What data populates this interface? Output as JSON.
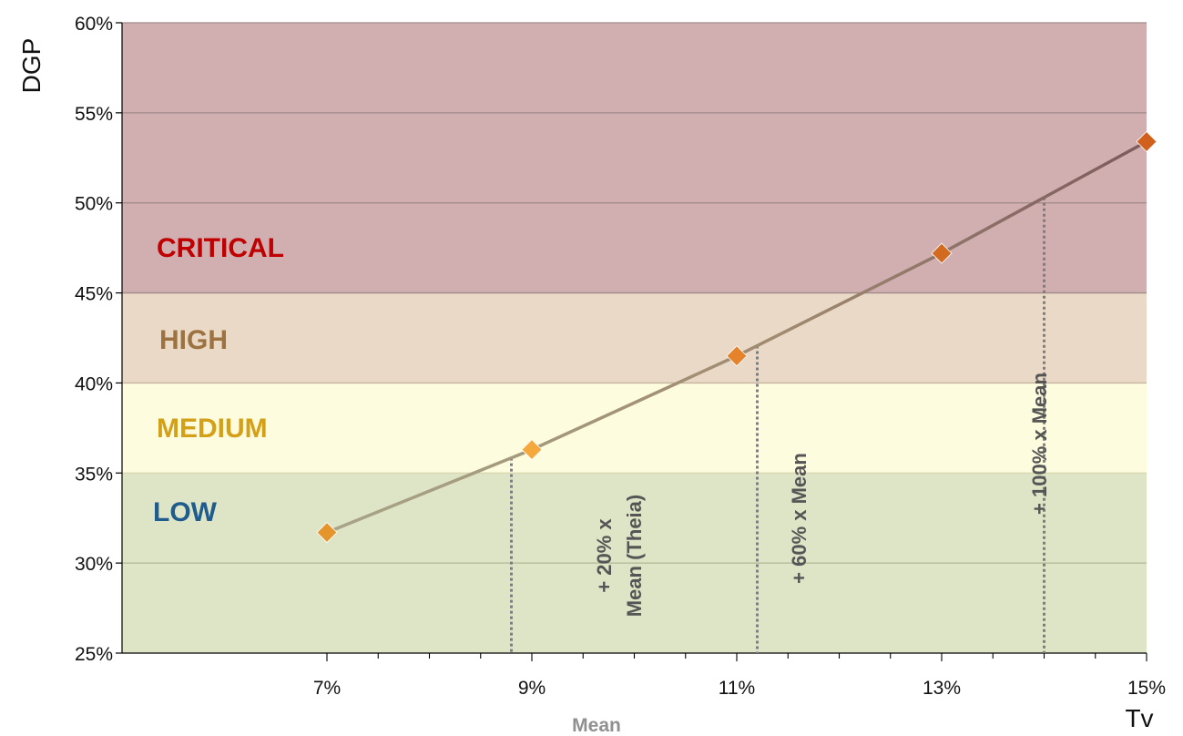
{
  "chart_data": {
    "type": "line",
    "xlabel": "Tv",
    "ylabel": "DGP",
    "xlim": [
      5,
      15
    ],
    "ylim": [
      25,
      60
    ],
    "x_ticks": [
      "7%",
      "9%",
      "11%",
      "13%",
      "15%"
    ],
    "y_ticks": [
      "25%",
      "30%",
      "35%",
      "40%",
      "45%",
      "50%",
      "55%",
      "60%"
    ],
    "mean_label": "Mean",
    "zones": [
      {
        "name": "LOW",
        "from": 25,
        "to": 35,
        "fill": "#dde5c6",
        "text_color": "#1f5b8c"
      },
      {
        "name": "MEDIUM",
        "from": 35,
        "to": 40,
        "fill": "#fdfcde",
        "text_color": "#d4a017"
      },
      {
        "name": "HIGH",
        "from": 40,
        "to": 45,
        "fill": "#e9d9c6",
        "text_color": "#9b7240"
      },
      {
        "name": "CRITICAL",
        "from": 45,
        "to": 60,
        "fill": "#d1afb1",
        "text_color": "#c00000"
      }
    ],
    "series": [
      {
        "x": [
          7,
          9,
          11,
          13,
          15
        ],
        "y": [
          31.7,
          36.3,
          41.5,
          47.2,
          53.4
        ],
        "marker_colors": [
          "#e5952c",
          "#f5a83c",
          "#e5822c",
          "#d26a20",
          "#d0601c"
        ]
      }
    ],
    "annotations": [
      {
        "x": 8.8,
        "lines": [
          "+ 20% x",
          "Mean (Theia)"
        ],
        "highlight": "(Theia)"
      },
      {
        "x": 11.2,
        "lines": [
          "+ 60% x Mean"
        ]
      },
      {
        "x": 14.0,
        "lines": [
          "+ 100% x Mean"
        ]
      }
    ],
    "grid": true,
    "legend": "none"
  }
}
